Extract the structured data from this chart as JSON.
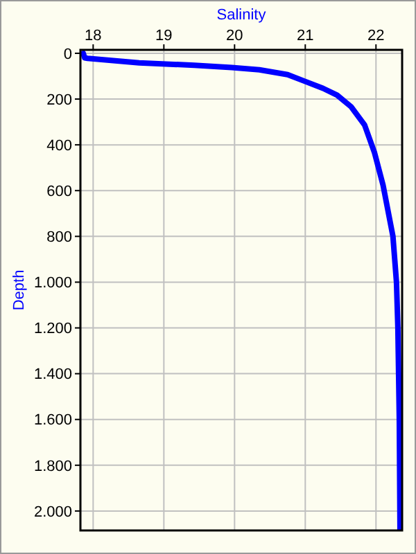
{
  "chart_data": {
    "type": "line",
    "xlabel": "Salinity",
    "ylabel": "Depth",
    "xlim": [
      17.82,
      22.37
    ],
    "xticks": [
      18,
      19,
      20,
      21,
      22
    ],
    "ylim": [
      2085,
      -15
    ],
    "yticks": [
      0,
      200,
      400,
      600,
      800,
      {
        "value": 1000,
        "label": "1.000"
      },
      {
        "value": 1200,
        "label": "1.200"
      },
      {
        "value": 1400,
        "label": "1.400"
      },
      {
        "value": 1600,
        "label": "1.600"
      },
      {
        "value": 1800,
        "label": "1.800"
      },
      {
        "value": 2000,
        "label": "2.000"
      }
    ],
    "grid": true,
    "marker": "none",
    "line_style": "solid",
    "series": [
      {
        "color": "#0000ff",
        "x": [
          17.86,
          17.88,
          17.92,
          18.65,
          19.43,
          19.96,
          20.35,
          20.75,
          21.0,
          21.25,
          21.45,
          21.65,
          21.84,
          21.98,
          22.1,
          22.24,
          22.29,
          22.31,
          22.33,
          22.34
        ],
        "values": [
          0,
          20,
          22,
          42,
          52,
          62,
          72,
          93,
          123,
          153,
          183,
          234,
          314,
          435,
          576,
          800,
          1000,
          1200,
          1600,
          2080
        ]
      }
    ]
  }
}
